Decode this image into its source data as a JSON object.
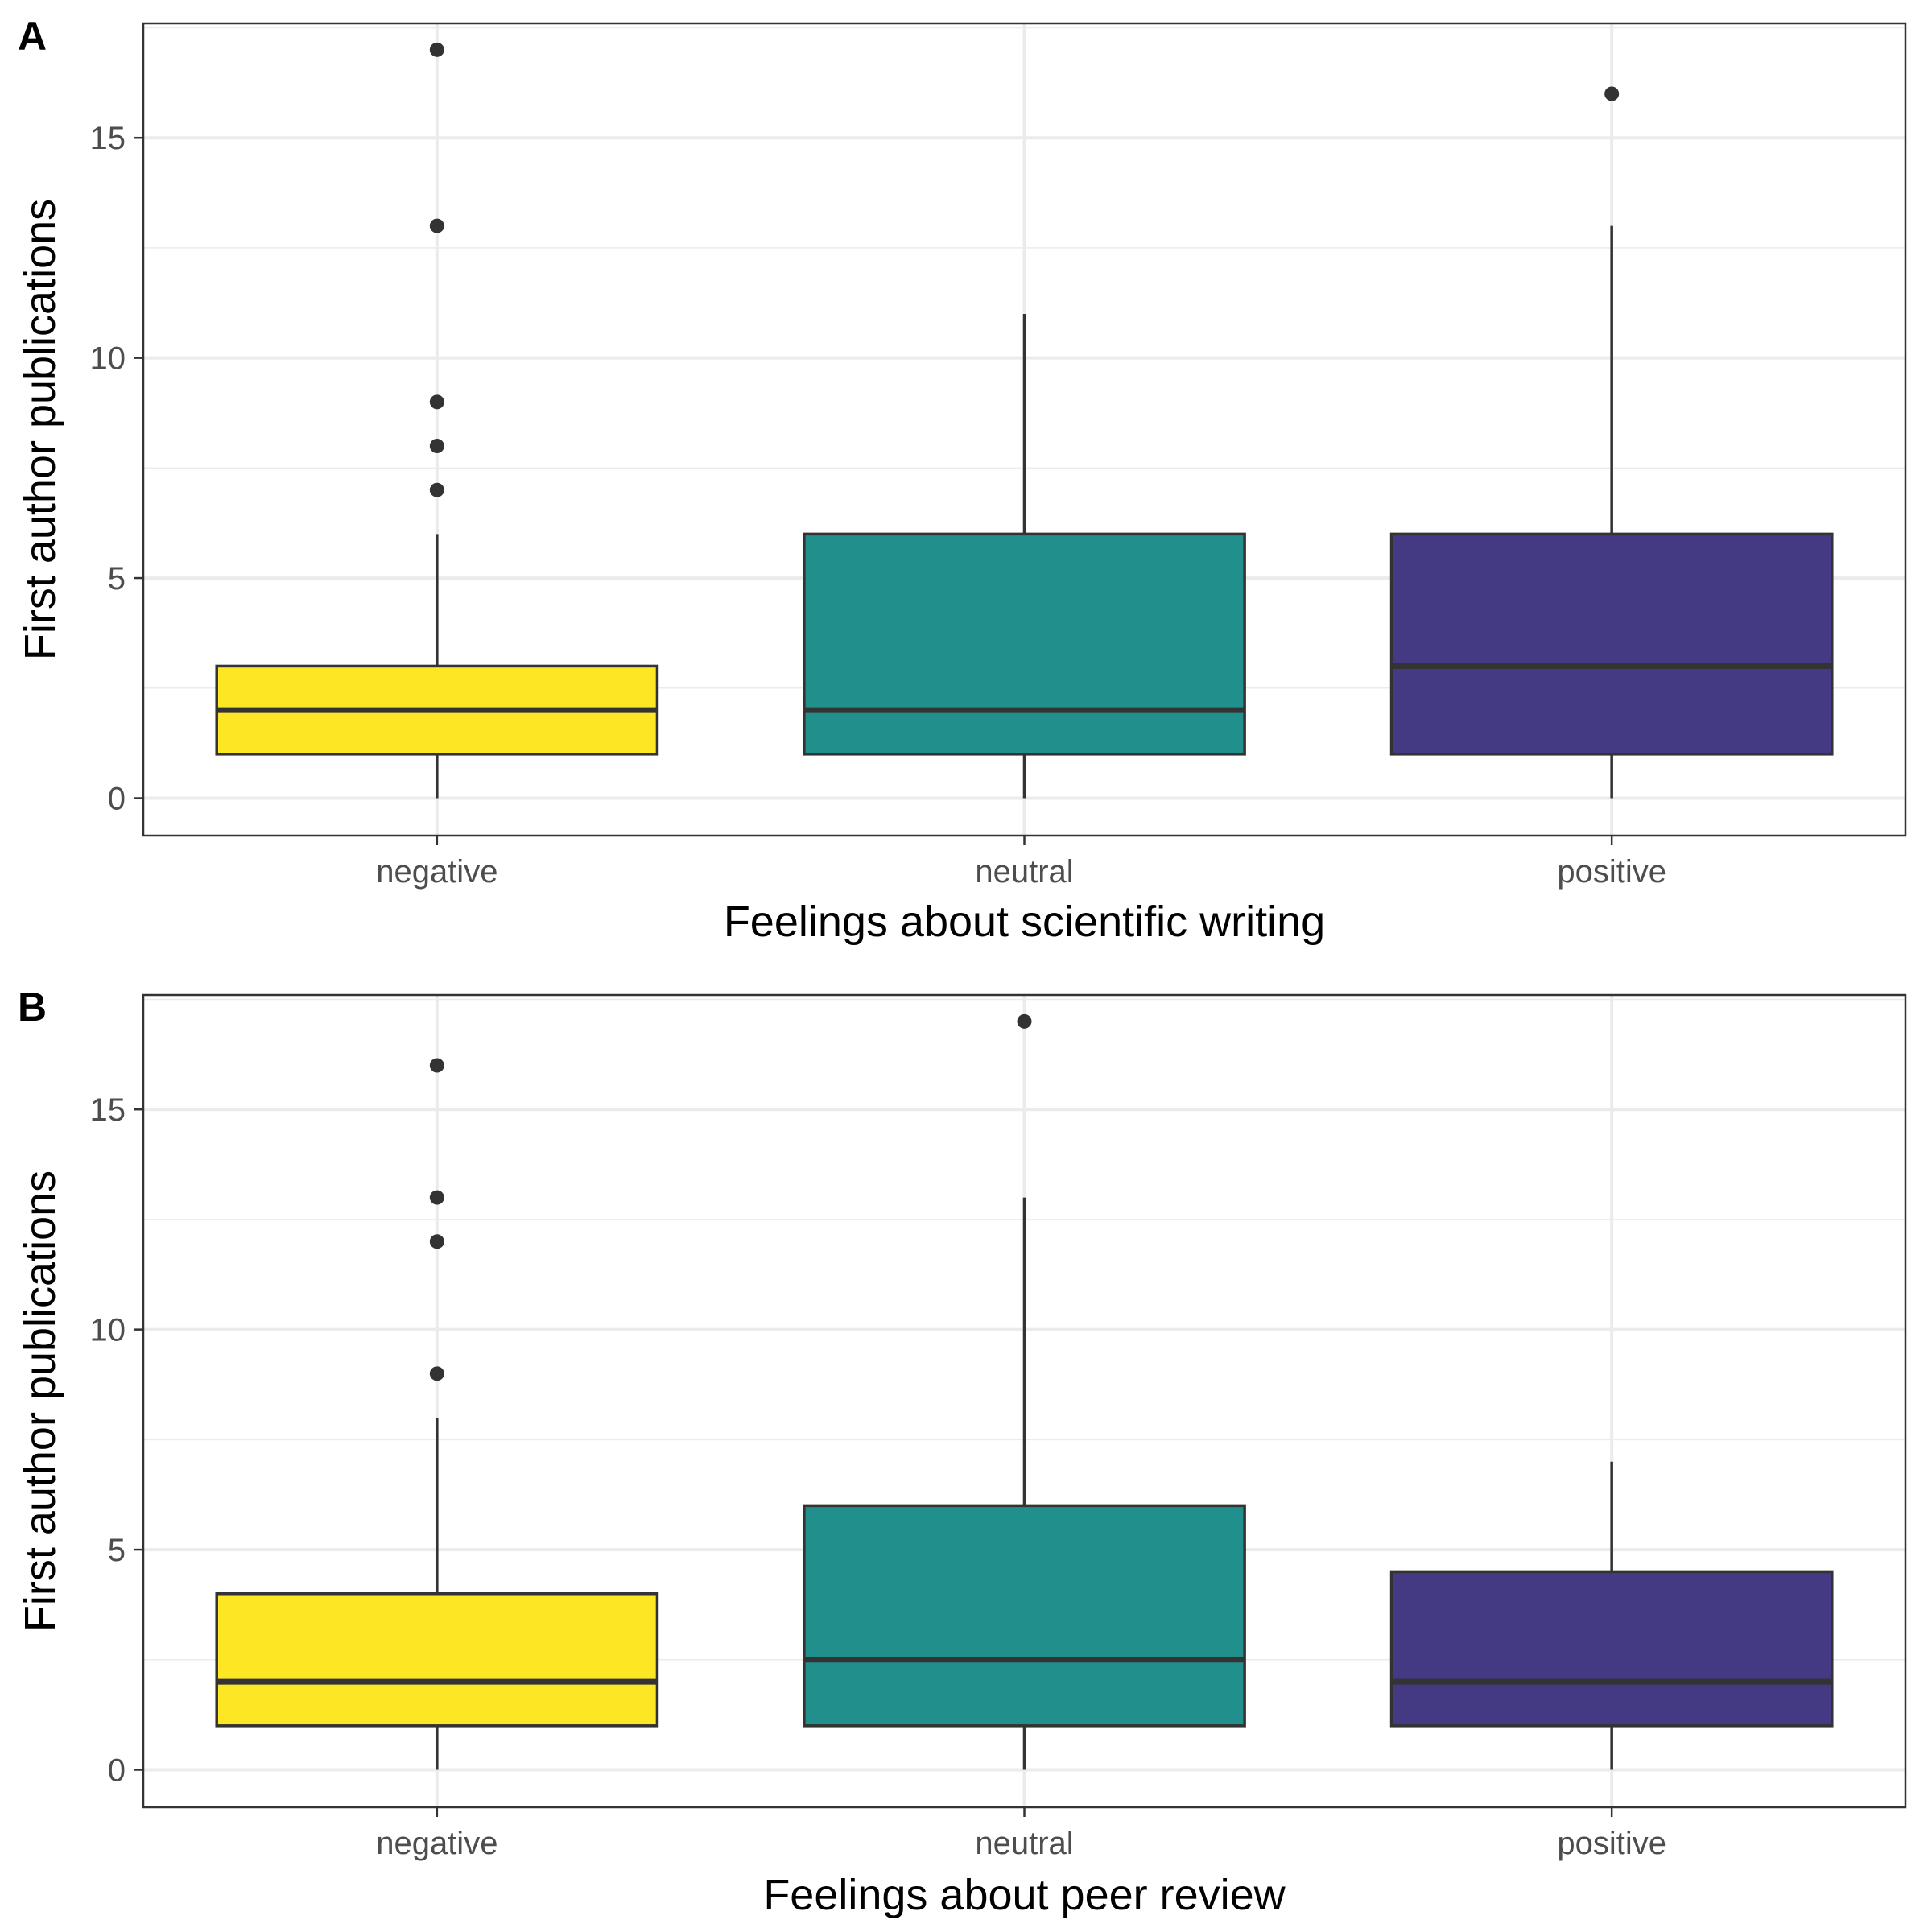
{
  "chart_data": [
    {
      "type": "box",
      "panel_label": "A",
      "xlabel": "Feelings about scientific writing",
      "ylabel": "First author publications",
      "ylim": [
        -0.85,
        17.6
      ],
      "yticks": [
        0,
        5,
        10,
        15
      ],
      "ytick_labels": [
        "0",
        "5",
        "10",
        "15"
      ],
      "grid": true,
      "categories": [
        "negative",
        "neutral",
        "positive"
      ],
      "boxes": [
        {
          "category": "negative",
          "color": "#FDE725",
          "whisker_low": 0,
          "q1": 1,
          "median": 2,
          "q3": 3,
          "whisker_high": 6,
          "outliers": [
            7,
            8,
            9,
            13,
            17
          ]
        },
        {
          "category": "neutral",
          "color": "#21908C",
          "whisker_low": 0,
          "q1": 1,
          "median": 2,
          "q3": 6,
          "whisker_high": 11,
          "outliers": []
        },
        {
          "category": "positive",
          "color": "#443A83",
          "whisker_low": 0,
          "q1": 1,
          "median": 3,
          "q3": 6,
          "whisker_high": 13,
          "outliers": [
            16
          ]
        }
      ]
    },
    {
      "type": "box",
      "panel_label": "B",
      "xlabel": "Feelings about peer review",
      "ylabel": "First author publications",
      "ylim": [
        -0.85,
        17.6
      ],
      "yticks": [
        0,
        5,
        10,
        15
      ],
      "ytick_labels": [
        "0",
        "5",
        "10",
        "15"
      ],
      "grid": true,
      "categories": [
        "negative",
        "neutral",
        "positive"
      ],
      "boxes": [
        {
          "category": "negative",
          "color": "#FDE725",
          "whisker_low": 0,
          "q1": 1,
          "median": 2,
          "q3": 4,
          "whisker_high": 8,
          "outliers": [
            9,
            12,
            13,
            16
          ]
        },
        {
          "category": "neutral",
          "color": "#21908C",
          "whisker_low": 0,
          "q1": 1,
          "median": 2.5,
          "q3": 6,
          "whisker_high": 13,
          "outliers": [
            17
          ]
        },
        {
          "category": "positive",
          "color": "#443A83",
          "whisker_low": 0,
          "q1": 1,
          "median": 2,
          "q3": 4.5,
          "whisker_high": 7,
          "outliers": []
        }
      ]
    }
  ]
}
